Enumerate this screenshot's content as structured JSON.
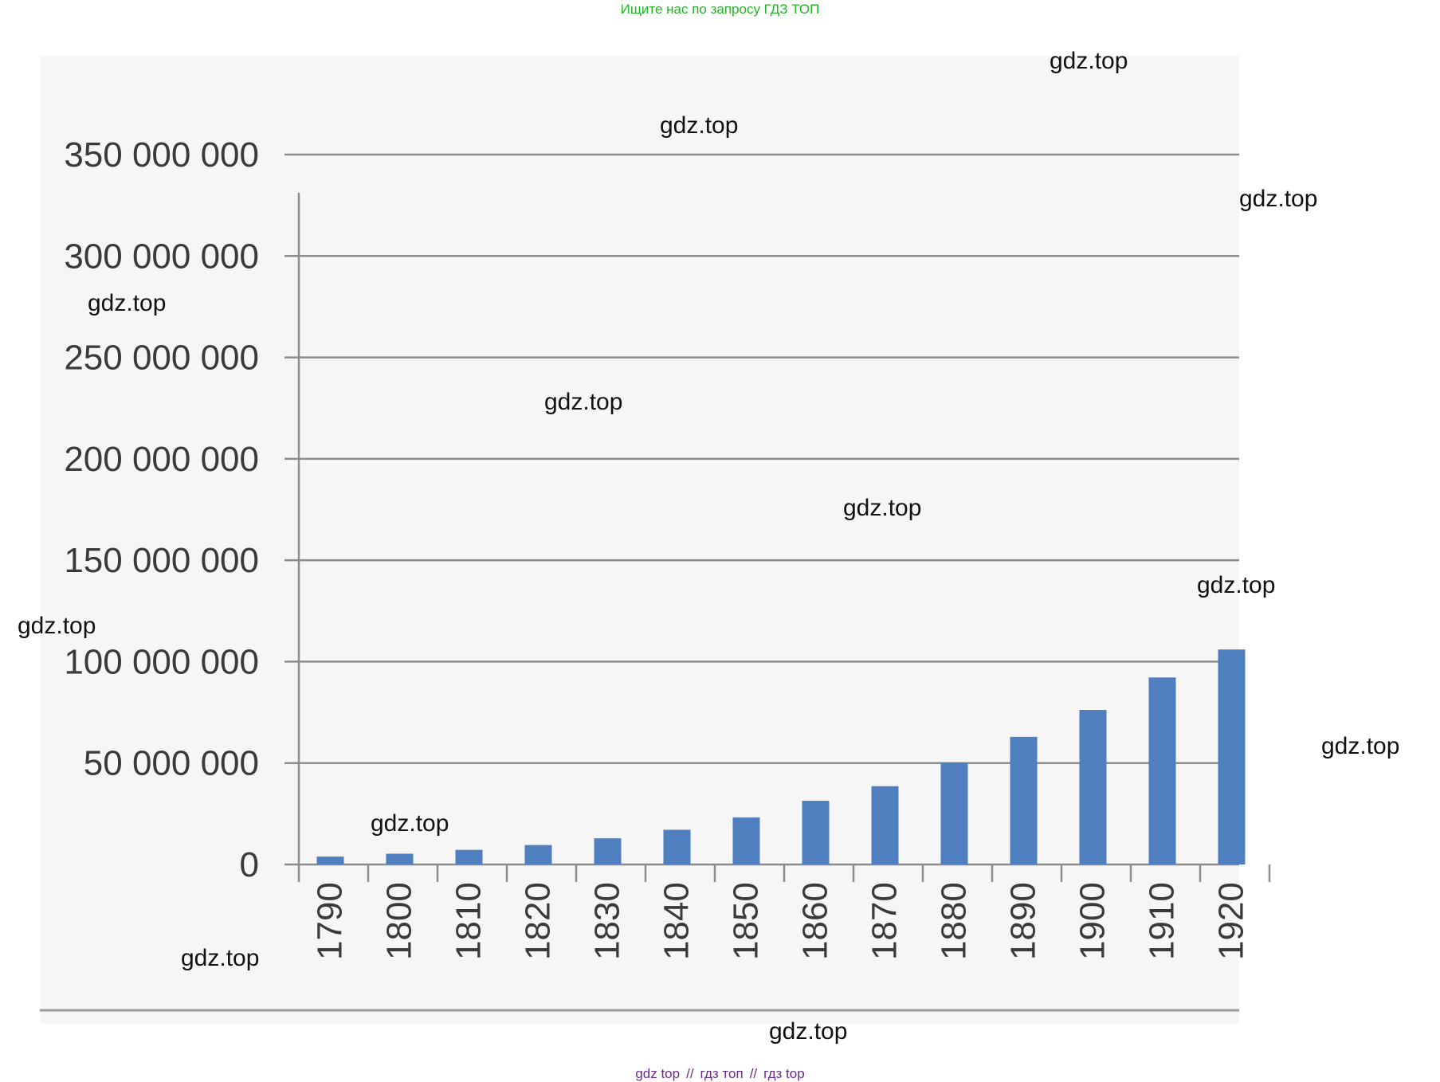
{
  "header": {
    "text": "Ищите нас по запросу ГДЗ ТОП"
  },
  "footer": {
    "links": [
      "gdz top",
      "гдз топ",
      "гдз top"
    ],
    "separator": "//"
  },
  "watermarks": {
    "text": "gdz.top"
  },
  "colors": {
    "bar": "#4f7fbf",
    "grid": "#8c8c8c",
    "header": "#22b422",
    "footer": "#6a2a8a",
    "panel": "#f6f6f6"
  },
  "chart_data": {
    "type": "bar",
    "title": "",
    "xlabel": "",
    "ylabel": "",
    "ylim": [
      0,
      350000000
    ],
    "grid": true,
    "legend": "none",
    "y_ticks": [
      0,
      50000000,
      100000000,
      150000000,
      200000000,
      250000000,
      300000000,
      350000000
    ],
    "y_tick_labels": [
      "0",
      "50 000 000",
      "100 000 000",
      "150 000 000",
      "200 000 000",
      "250 000 000",
      "300 000 000",
      "350 000 000"
    ],
    "categories": [
      "1790",
      "1800",
      "1810",
      "1820",
      "1830",
      "1840",
      "1850",
      "1860",
      "1870",
      "1880",
      "1890",
      "1900",
      "1910",
      "1920"
    ],
    "values": [
      3900000,
      5300000,
      7200000,
      9600000,
      12900000,
      17100000,
      23200000,
      31400000,
      38600000,
      50200000,
      62900000,
      76200000,
      92200000,
      106000000
    ]
  }
}
